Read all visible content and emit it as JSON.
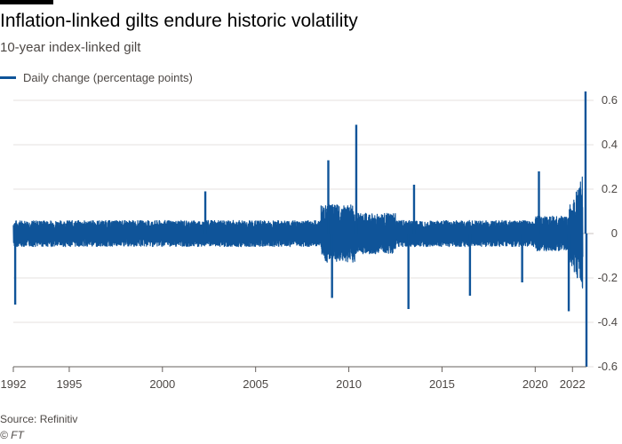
{
  "chart_data": {
    "type": "line",
    "title": "Inflation-linked gilts endure historic volatility",
    "subtitle": "10-year index-linked gilt",
    "series": [
      {
        "name": "Daily change (percentage points)",
        "color": "#0f5499",
        "notable_points": [
          {
            "x": 1992.1,
            "y": -0.32
          },
          {
            "x": 2002.3,
            "y": 0.19
          },
          {
            "x": 2008.9,
            "y": 0.33
          },
          {
            "x": 2009.1,
            "y": -0.29
          },
          {
            "x": 2010.4,
            "y": 0.49
          },
          {
            "x": 2013.2,
            "y": -0.34
          },
          {
            "x": 2013.5,
            "y": 0.22
          },
          {
            "x": 2016.5,
            "y": -0.28
          },
          {
            "x": 2019.3,
            "y": -0.22
          },
          {
            "x": 2020.2,
            "y": 0.28
          },
          {
            "x": 2021.8,
            "y": -0.35
          },
          {
            "x": 2022.7,
            "y": 0.64
          },
          {
            "x": 2022.75,
            "y": -0.6
          }
        ]
      }
    ],
    "x_ticks": [
      "1992",
      "1995",
      "2000",
      "2005",
      "2010",
      "2015",
      "2020",
      "2022"
    ],
    "y_ticks": [
      "0.6",
      "0.4",
      "0.2",
      "0",
      "-0.2",
      "-0.4",
      "-0.6"
    ],
    "xlim": [
      1992,
      2022.75
    ],
    "ylim": [
      -0.6,
      0.6
    ],
    "grid": true,
    "y_axis_side": "right",
    "legend_position": "top-left"
  },
  "footer": {
    "source": "Source: Refinitiv",
    "copyright": "© FT"
  }
}
